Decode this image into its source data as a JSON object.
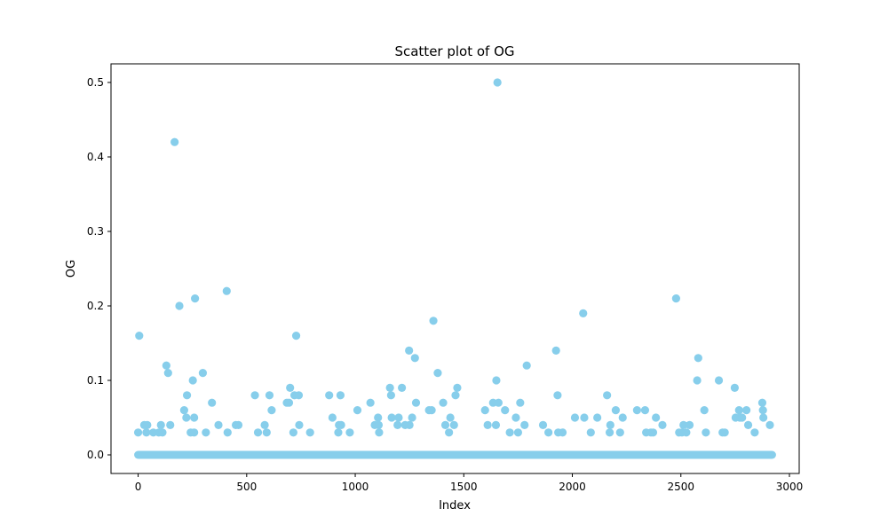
{
  "chart_data": {
    "type": "scatter",
    "title": "Scatter plot of OG",
    "xlabel": "Index",
    "ylabel": "OG",
    "xlim": [
      -125,
      3045
    ],
    "ylim": [
      -0.025,
      0.525
    ],
    "xticks": [
      0,
      500,
      1000,
      1500,
      2000,
      2500,
      3000
    ],
    "xtick_labels": [
      "0",
      "500",
      "1000",
      "1500",
      "2000",
      "2500",
      "3000"
    ],
    "yticks": [
      0.0,
      0.1,
      0.2,
      0.3,
      0.4,
      0.5
    ],
    "ytick_labels": [
      "0.0",
      "0.1",
      "0.2",
      "0.3",
      "0.4",
      "0.5"
    ],
    "grid": false,
    "legend": "none",
    "marker_color": "#87ceeb",
    "baseline": {
      "x_start": 0,
      "x_end": 2920,
      "y": 0.0
    },
    "points": [
      {
        "x": 0,
        "y": 0.03
      },
      {
        "x": 5,
        "y": 0.16
      },
      {
        "x": 28,
        "y": 0.04
      },
      {
        "x": 38,
        "y": 0.03
      },
      {
        "x": 42,
        "y": 0.04
      },
      {
        "x": 70,
        "y": 0.03
      },
      {
        "x": 95,
        "y": 0.03
      },
      {
        "x": 105,
        "y": 0.04
      },
      {
        "x": 112,
        "y": 0.03
      },
      {
        "x": 130,
        "y": 0.12
      },
      {
        "x": 138,
        "y": 0.11
      },
      {
        "x": 148,
        "y": 0.04
      },
      {
        "x": 168,
        "y": 0.42
      },
      {
        "x": 190,
        "y": 0.2
      },
      {
        "x": 212,
        "y": 0.06
      },
      {
        "x": 225,
        "y": 0.08
      },
      {
        "x": 222,
        "y": 0.05
      },
      {
        "x": 242,
        "y": 0.03
      },
      {
        "x": 252,
        "y": 0.1
      },
      {
        "x": 258,
        "y": 0.03
      },
      {
        "x": 258,
        "y": 0.05
      },
      {
        "x": 262,
        "y": 0.21
      },
      {
        "x": 298,
        "y": 0.11
      },
      {
        "x": 312,
        "y": 0.03
      },
      {
        "x": 340,
        "y": 0.07
      },
      {
        "x": 370,
        "y": 0.04
      },
      {
        "x": 408,
        "y": 0.22
      },
      {
        "x": 412,
        "y": 0.03
      },
      {
        "x": 450,
        "y": 0.04
      },
      {
        "x": 462,
        "y": 0.04
      },
      {
        "x": 538,
        "y": 0.08
      },
      {
        "x": 552,
        "y": 0.03
      },
      {
        "x": 583,
        "y": 0.04
      },
      {
        "x": 592,
        "y": 0.03
      },
      {
        "x": 605,
        "y": 0.08
      },
      {
        "x": 615,
        "y": 0.06
      },
      {
        "x": 685,
        "y": 0.07
      },
      {
        "x": 695,
        "y": 0.07
      },
      {
        "x": 700,
        "y": 0.09
      },
      {
        "x": 715,
        "y": 0.03
      },
      {
        "x": 720,
        "y": 0.08
      },
      {
        "x": 728,
        "y": 0.16
      },
      {
        "x": 740,
        "y": 0.08
      },
      {
        "x": 742,
        "y": 0.04
      },
      {
        "x": 792,
        "y": 0.03
      },
      {
        "x": 880,
        "y": 0.08
      },
      {
        "x": 895,
        "y": 0.05
      },
      {
        "x": 922,
        "y": 0.03
      },
      {
        "x": 932,
        "y": 0.08
      },
      {
        "x": 925,
        "y": 0.04
      },
      {
        "x": 935,
        "y": 0.04
      },
      {
        "x": 975,
        "y": 0.03
      },
      {
        "x": 1010,
        "y": 0.06
      },
      {
        "x": 1070,
        "y": 0.07
      },
      {
        "x": 1090,
        "y": 0.04
      },
      {
        "x": 1105,
        "y": 0.05
      },
      {
        "x": 1108,
        "y": 0.04
      },
      {
        "x": 1110,
        "y": 0.03
      },
      {
        "x": 1160,
        "y": 0.09
      },
      {
        "x": 1165,
        "y": 0.08
      },
      {
        "x": 1168,
        "y": 0.05
      },
      {
        "x": 1195,
        "y": 0.04
      },
      {
        "x": 1200,
        "y": 0.05
      },
      {
        "x": 1215,
        "y": 0.09
      },
      {
        "x": 1230,
        "y": 0.04
      },
      {
        "x": 1248,
        "y": 0.14
      },
      {
        "x": 1250,
        "y": 0.04
      },
      {
        "x": 1262,
        "y": 0.05
      },
      {
        "x": 1275,
        "y": 0.13
      },
      {
        "x": 1280,
        "y": 0.07
      },
      {
        "x": 1340,
        "y": 0.06
      },
      {
        "x": 1352,
        "y": 0.06
      },
      {
        "x": 1360,
        "y": 0.18
      },
      {
        "x": 1380,
        "y": 0.11
      },
      {
        "x": 1405,
        "y": 0.07
      },
      {
        "x": 1415,
        "y": 0.04
      },
      {
        "x": 1432,
        "y": 0.03
      },
      {
        "x": 1438,
        "y": 0.05
      },
      {
        "x": 1455,
        "y": 0.04
      },
      {
        "x": 1462,
        "y": 0.08
      },
      {
        "x": 1470,
        "y": 0.09
      },
      {
        "x": 1598,
        "y": 0.06
      },
      {
        "x": 1610,
        "y": 0.04
      },
      {
        "x": 1635,
        "y": 0.07
      },
      {
        "x": 1648,
        "y": 0.04
      },
      {
        "x": 1650,
        "y": 0.1
      },
      {
        "x": 1655,
        "y": 0.5
      },
      {
        "x": 1660,
        "y": 0.07
      },
      {
        "x": 1690,
        "y": 0.06
      },
      {
        "x": 1712,
        "y": 0.03
      },
      {
        "x": 1740,
        "y": 0.05
      },
      {
        "x": 1750,
        "y": 0.03
      },
      {
        "x": 1760,
        "y": 0.07
      },
      {
        "x": 1780,
        "y": 0.04
      },
      {
        "x": 1790,
        "y": 0.12
      },
      {
        "x": 1865,
        "y": 0.04
      },
      {
        "x": 1890,
        "y": 0.03
      },
      {
        "x": 1925,
        "y": 0.14
      },
      {
        "x": 1932,
        "y": 0.08
      },
      {
        "x": 1935,
        "y": 0.03
      },
      {
        "x": 1955,
        "y": 0.03
      },
      {
        "x": 2012,
        "y": 0.05
      },
      {
        "x": 2050,
        "y": 0.19
      },
      {
        "x": 2055,
        "y": 0.05
      },
      {
        "x": 2085,
        "y": 0.03
      },
      {
        "x": 2115,
        "y": 0.05
      },
      {
        "x": 2160,
        "y": 0.08
      },
      {
        "x": 2172,
        "y": 0.03
      },
      {
        "x": 2175,
        "y": 0.04
      },
      {
        "x": 2200,
        "y": 0.06
      },
      {
        "x": 2220,
        "y": 0.03
      },
      {
        "x": 2232,
        "y": 0.05
      },
      {
        "x": 2298,
        "y": 0.06
      },
      {
        "x": 2335,
        "y": 0.06
      },
      {
        "x": 2340,
        "y": 0.03
      },
      {
        "x": 2362,
        "y": 0.03
      },
      {
        "x": 2372,
        "y": 0.03
      },
      {
        "x": 2385,
        "y": 0.05
      },
      {
        "x": 2415,
        "y": 0.04
      },
      {
        "x": 2478,
        "y": 0.21
      },
      {
        "x": 2492,
        "y": 0.03
      },
      {
        "x": 2505,
        "y": 0.03
      },
      {
        "x": 2512,
        "y": 0.04
      },
      {
        "x": 2525,
        "y": 0.03
      },
      {
        "x": 2540,
        "y": 0.04
      },
      {
        "x": 2575,
        "y": 0.1
      },
      {
        "x": 2580,
        "y": 0.13
      },
      {
        "x": 2608,
        "y": 0.06
      },
      {
        "x": 2615,
        "y": 0.03
      },
      {
        "x": 2675,
        "y": 0.1
      },
      {
        "x": 2692,
        "y": 0.03
      },
      {
        "x": 2702,
        "y": 0.03
      },
      {
        "x": 2748,
        "y": 0.09
      },
      {
        "x": 2752,
        "y": 0.05
      },
      {
        "x": 2768,
        "y": 0.06
      },
      {
        "x": 2772,
        "y": 0.05
      },
      {
        "x": 2782,
        "y": 0.05
      },
      {
        "x": 2802,
        "y": 0.06
      },
      {
        "x": 2810,
        "y": 0.04
      },
      {
        "x": 2840,
        "y": 0.03
      },
      {
        "x": 2875,
        "y": 0.07
      },
      {
        "x": 2878,
        "y": 0.06
      },
      {
        "x": 2880,
        "y": 0.05
      },
      {
        "x": 2910,
        "y": 0.04
      }
    ]
  }
}
